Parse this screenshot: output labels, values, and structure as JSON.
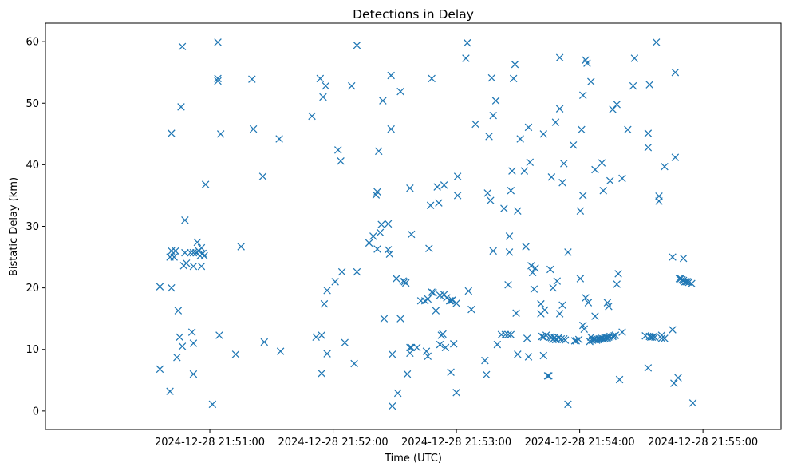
{
  "chart_data": {
    "type": "scatter",
    "title": "Detections in Delay",
    "xlabel": "Time (UTC)",
    "ylabel": "Bistatic Delay (km)",
    "marker": "x",
    "color": "#1f77b4",
    "grid": false,
    "legend": "none",
    "x_unit": "seconds after 21:50:00 UTC on 2024-12-28",
    "xlim": [
      -20,
      338
    ],
    "ylim": [
      -3,
      63
    ],
    "x_ticks": [
      {
        "value": 60,
        "label": "2024-12-28 21:51:00"
      },
      {
        "value": 120,
        "label": "2024-12-28 21:52:00"
      },
      {
        "value": 180,
        "label": "2024-12-28 21:53:00"
      },
      {
        "value": 240,
        "label": "2024-12-28 21:54:00"
      },
      {
        "value": 300,
        "label": "2024-12-28 21:55:00"
      }
    ],
    "y_ticks": [
      {
        "value": 0,
        "label": "0"
      },
      {
        "value": 10,
        "label": "10"
      },
      {
        "value": 20,
        "label": "20"
      },
      {
        "value": 30,
        "label": "30"
      },
      {
        "value": 40,
        "label": "40"
      },
      {
        "value": 50,
        "label": "50"
      },
      {
        "value": 60,
        "label": "60"
      }
    ],
    "series": [
      {
        "points": [
          [
            35.7,
            20.2
          ],
          [
            35.7,
            6.8
          ],
          [
            40.6,
            25.0
          ],
          [
            40.6,
            3.2
          ],
          [
            41.3,
            26.0
          ],
          [
            41.3,
            45.1
          ],
          [
            41.3,
            20.0
          ],
          [
            42.6,
            25.0
          ],
          [
            43.3,
            26.0
          ],
          [
            44.0,
            8.7
          ],
          [
            44.6,
            16.3
          ],
          [
            45.3,
            12.0
          ],
          [
            46.0,
            49.4
          ],
          [
            46.6,
            59.2
          ],
          [
            46.6,
            10.5
          ],
          [
            47.3,
            23.6
          ],
          [
            47.9,
            31.0
          ],
          [
            47.9,
            25.7
          ],
          [
            48.6,
            24.0
          ],
          [
            50.6,
            25.7
          ],
          [
            51.3,
            12.8
          ],
          [
            52.0,
            25.7
          ],
          [
            52.0,
            23.5
          ],
          [
            52.0,
            11.0
          ],
          [
            52.0,
            6.0
          ],
          [
            53.3,
            25.7
          ],
          [
            53.9,
            27.4
          ],
          [
            54.6,
            26.0
          ],
          [
            55.3,
            25.2
          ],
          [
            55.9,
            26.5
          ],
          [
            55.9,
            23.5
          ],
          [
            56.6,
            25.6
          ],
          [
            57.3,
            25.2
          ],
          [
            57.9,
            36.8
          ],
          [
            61.3,
            1.1
          ],
          [
            63.9,
            59.9
          ],
          [
            63.9,
            54.0
          ],
          [
            63.9,
            53.6
          ],
          [
            64.6,
            12.3
          ],
          [
            65.3,
            45.0
          ],
          [
            72.6,
            9.2
          ],
          [
            75.2,
            26.7
          ],
          [
            80.5,
            53.9
          ],
          [
            81.2,
            45.8
          ],
          [
            85.8,
            38.1
          ],
          [
            86.5,
            11.2
          ],
          [
            93.8,
            44.2
          ],
          [
            94.4,
            9.7
          ],
          [
            109.7,
            47.9
          ],
          [
            111.7,
            12.0
          ],
          [
            113.7,
            54.0
          ],
          [
            114.4,
            6.1
          ],
          [
            114.4,
            12.3
          ],
          [
            115.1,
            51.0
          ],
          [
            115.7,
            17.4
          ],
          [
            116.4,
            52.8
          ],
          [
            117.1,
            19.6
          ],
          [
            117.1,
            9.3
          ],
          [
            121.0,
            21.0
          ],
          [
            122.4,
            42.4
          ],
          [
            123.7,
            40.6
          ],
          [
            124.3,
            22.6
          ],
          [
            125.7,
            11.1
          ],
          [
            129.0,
            52.8
          ],
          [
            130.3,
            7.7
          ],
          [
            131.6,
            59.4
          ],
          [
            131.6,
            22.6
          ],
          [
            137.5,
            27.3
          ],
          [
            139.5,
            28.4
          ],
          [
            140.9,
            35.1
          ],
          [
            141.5,
            35.6
          ],
          [
            141.5,
            26.3
          ],
          [
            142.2,
            42.2
          ],
          [
            142.9,
            29.0
          ],
          [
            143.5,
            30.3
          ],
          [
            144.2,
            50.4
          ],
          [
            144.8,
            15.0
          ],
          [
            146.8,
            30.4
          ],
          [
            146.8,
            26.2
          ],
          [
            147.5,
            25.5
          ],
          [
            148.2,
            45.8
          ],
          [
            148.2,
            54.5
          ],
          [
            148.8,
            0.8
          ],
          [
            148.8,
            9.2
          ],
          [
            150.8,
            21.5
          ],
          [
            151.5,
            2.9
          ],
          [
            152.8,
            51.9
          ],
          [
            152.8,
            15.0
          ],
          [
            154.1,
            21.1
          ],
          [
            154.8,
            21.0
          ],
          [
            155.4,
            20.8
          ],
          [
            156.1,
            6.0
          ],
          [
            157.4,
            10.3
          ],
          [
            157.4,
            9.4
          ],
          [
            157.4,
            36.2
          ],
          [
            158.1,
            28.7
          ],
          [
            158.1,
            10.3
          ],
          [
            160.8,
            10.3
          ],
          [
            162.7,
            17.9
          ],
          [
            164.7,
            17.9
          ],
          [
            165.4,
            9.7
          ],
          [
            166.1,
            8.9
          ],
          [
            166.1,
            18.2
          ],
          [
            166.7,
            26.4
          ],
          [
            167.4,
            33.4
          ],
          [
            168.0,
            54.0
          ],
          [
            168.0,
            19.3
          ],
          [
            168.7,
            19.2
          ],
          [
            170.0,
            16.3
          ],
          [
            170.7,
            36.4
          ],
          [
            171.4,
            33.8
          ],
          [
            172.0,
            18.8
          ],
          [
            172.0,
            10.8
          ],
          [
            172.7,
            12.3
          ],
          [
            173.4,
            12.5
          ],
          [
            174.0,
            18.9
          ],
          [
            174.0,
            36.7
          ],
          [
            174.7,
            10.3
          ],
          [
            175.3,
            18.4
          ],
          [
            176.7,
            17.9
          ],
          [
            177.3,
            17.9
          ],
          [
            177.3,
            6.3
          ],
          [
            178.0,
            18.0
          ],
          [
            178.7,
            10.9
          ],
          [
            180.0,
            17.5
          ],
          [
            180.0,
            3.0
          ],
          [
            180.6,
            35.0
          ],
          [
            180.6,
            38.1
          ],
          [
            184.6,
            57.3
          ],
          [
            185.3,
            59.8
          ],
          [
            185.9,
            19.5
          ],
          [
            187.3,
            16.5
          ],
          [
            189.3,
            46.6
          ],
          [
            193.9,
            8.2
          ],
          [
            194.6,
            5.9
          ],
          [
            195.2,
            35.4
          ],
          [
            195.9,
            44.6
          ],
          [
            196.6,
            34.2
          ],
          [
            197.2,
            54.1
          ],
          [
            197.9,
            26.0
          ],
          [
            197.9,
            48.0
          ],
          [
            199.2,
            50.4
          ],
          [
            199.9,
            10.8
          ],
          [
            201.9,
            12.4
          ],
          [
            203.2,
            32.9
          ],
          [
            203.8,
            12.4
          ],
          [
            205.2,
            12.4
          ],
          [
            205.2,
            20.5
          ],
          [
            205.8,
            28.4
          ],
          [
            205.8,
            25.8
          ],
          [
            206.5,
            12.4
          ],
          [
            206.5,
            35.8
          ],
          [
            207.1,
            39.0
          ],
          [
            207.8,
            54.0
          ],
          [
            208.5,
            56.3
          ],
          [
            209.1,
            15.9
          ],
          [
            209.8,
            32.5
          ],
          [
            209.8,
            9.2
          ],
          [
            211.1,
            44.2
          ],
          [
            213.1,
            39.0
          ],
          [
            213.8,
            26.7
          ],
          [
            214.4,
            11.8
          ],
          [
            215.1,
            46.1
          ],
          [
            215.1,
            8.8
          ],
          [
            215.8,
            40.4
          ],
          [
            216.4,
            23.6
          ],
          [
            217.1,
            22.5
          ],
          [
            217.8,
            19.8
          ],
          [
            218.4,
            23.2
          ],
          [
            221.1,
            17.4
          ],
          [
            221.1,
            15.8
          ],
          [
            221.7,
            12.1
          ],
          [
            221.7,
            12.1
          ],
          [
            222.4,
            45.0
          ],
          [
            222.4,
            12.0
          ],
          [
            222.4,
            9.0
          ],
          [
            223.0,
            16.4
          ],
          [
            223.7,
            12.3
          ],
          [
            224.4,
            5.7
          ],
          [
            225.0,
            5.7
          ],
          [
            225.7,
            12.0
          ],
          [
            225.7,
            23.0
          ],
          [
            226.3,
            11.9
          ],
          [
            226.3,
            38.0
          ],
          [
            227.0,
            11.6
          ],
          [
            227.0,
            20.0
          ],
          [
            227.7,
            11.9
          ],
          [
            228.3,
            11.6
          ],
          [
            228.3,
            46.9
          ],
          [
            229.0,
            21.1
          ],
          [
            229.0,
            11.6
          ],
          [
            229.7,
            11.9
          ],
          [
            230.3,
            49.1
          ],
          [
            230.3,
            57.4
          ],
          [
            230.3,
            15.8
          ],
          [
            231.0,
            11.7
          ],
          [
            231.6,
            37.1
          ],
          [
            231.6,
            17.2
          ],
          [
            232.3,
            40.2
          ],
          [
            232.3,
            11.7
          ],
          [
            233.0,
            11.5
          ],
          [
            234.3,
            1.1
          ],
          [
            234.3,
            25.8
          ],
          [
            236.9,
            43.2
          ],
          [
            237.6,
            11.4
          ],
          [
            238.3,
            11.4
          ],
          [
            239.6,
            11.6
          ],
          [
            240.3,
            32.5
          ],
          [
            240.3,
            21.5
          ],
          [
            240.9,
            45.7
          ],
          [
            241.6,
            13.9
          ],
          [
            241.6,
            35.0
          ],
          [
            241.6,
            51.3
          ],
          [
            242.2,
            13.3
          ],
          [
            242.9,
            18.4
          ],
          [
            242.9,
            57.0
          ],
          [
            243.6,
            56.5
          ],
          [
            244.2,
            17.6
          ],
          [
            244.9,
            11.3
          ],
          [
            245.5,
            12.0
          ],
          [
            245.5,
            53.5
          ],
          [
            246.2,
            11.5
          ],
          [
            246.9,
            11.6
          ],
          [
            247.5,
            15.4
          ],
          [
            247.5,
            11.6
          ],
          [
            247.5,
            39.2
          ],
          [
            248.2,
            11.5
          ],
          [
            248.9,
            11.6
          ],
          [
            249.5,
            11.7
          ],
          [
            250.2,
            11.7
          ],
          [
            250.8,
            11.8
          ],
          [
            250.8,
            40.3
          ],
          [
            251.5,
            11.7
          ],
          [
            251.5,
            35.8
          ],
          [
            252.2,
            11.8
          ],
          [
            252.8,
            11.9
          ],
          [
            253.5,
            17.6
          ],
          [
            253.5,
            11.9
          ],
          [
            254.1,
            12.0
          ],
          [
            254.1,
            17.0
          ],
          [
            254.8,
            12.1
          ],
          [
            254.8,
            37.4
          ],
          [
            256.1,
            12.1
          ],
          [
            256.1,
            49.0
          ],
          [
            256.8,
            12.2
          ],
          [
            257.4,
            12.3
          ],
          [
            258.1,
            49.8
          ],
          [
            258.1,
            20.6
          ],
          [
            258.8,
            22.3
          ],
          [
            259.4,
            5.1
          ],
          [
            260.7,
            37.8
          ],
          [
            260.7,
            12.8
          ],
          [
            263.4,
            45.7
          ],
          [
            266.0,
            52.8
          ],
          [
            266.7,
            57.3
          ],
          [
            272.0,
            12.2
          ],
          [
            273.3,
            45.1
          ],
          [
            273.3,
            42.8
          ],
          [
            273.3,
            7.0
          ],
          [
            274.0,
            53.0
          ],
          [
            274.0,
            12.1
          ],
          [
            274.6,
            12.0
          ],
          [
            275.3,
            12.0
          ],
          [
            276.0,
            12.1
          ],
          [
            276.6,
            12.0
          ],
          [
            277.3,
            59.9
          ],
          [
            278.6,
            34.9
          ],
          [
            278.6,
            34.1
          ],
          [
            279.9,
            12.3
          ],
          [
            279.9,
            11.8
          ],
          [
            281.3,
            11.8
          ],
          [
            281.3,
            39.7
          ],
          [
            285.2,
            25.0
          ],
          [
            285.2,
            13.2
          ],
          [
            285.9,
            4.5
          ],
          [
            286.5,
            55.0
          ],
          [
            286.5,
            41.2
          ],
          [
            287.9,
            5.4
          ],
          [
            288.5,
            21.5
          ],
          [
            289.2,
            21.5
          ],
          [
            289.8,
            21.3
          ],
          [
            290.5,
            21.2
          ],
          [
            290.5,
            24.8
          ],
          [
            291.2,
            21.0
          ],
          [
            291.8,
            21.0
          ],
          [
            292.5,
            21.0
          ],
          [
            293.1,
            20.9
          ],
          [
            294.5,
            20.7
          ],
          [
            295.1,
            1.3
          ]
        ]
      }
    ]
  }
}
